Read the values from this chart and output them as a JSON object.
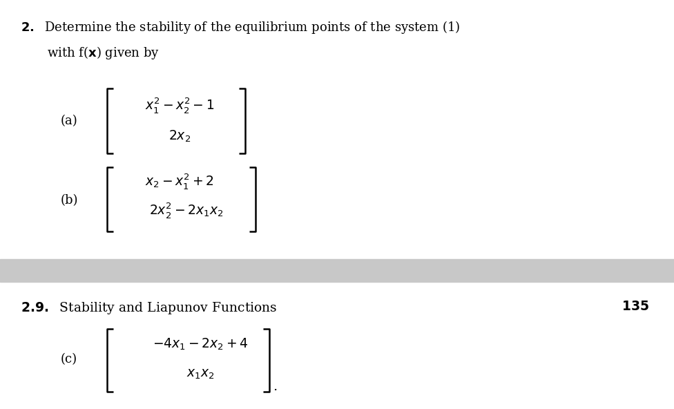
{
  "bg_color": "#ffffff",
  "divider_color": "#c8c8c8",
  "text_color": "#000000",
  "fig_width": 9.76,
  "fig_height": 5.92,
  "dpi": 100,
  "title_line1": "2.  Determine the stability of the equilibrium points of the system (1)",
  "title_line2": "with f(x) given by",
  "section_header": "2.9.  Stability and Liapunov Functions",
  "page_number": "135",
  "label_a": "(a)",
  "label_b": "(b)",
  "label_c": "(c)",
  "row_a1": "$x_1^2 - x_2^2 - 1$",
  "row_a2": "$2x_2$",
  "row_b1": "$x_2 - x_1^2 + 2$",
  "row_b2": "$2x_2^2 - 2x_1x_2$",
  "row_c1": "$-4x_1 - 2x_2 + 4$",
  "row_c2": "$x_1x_2$"
}
